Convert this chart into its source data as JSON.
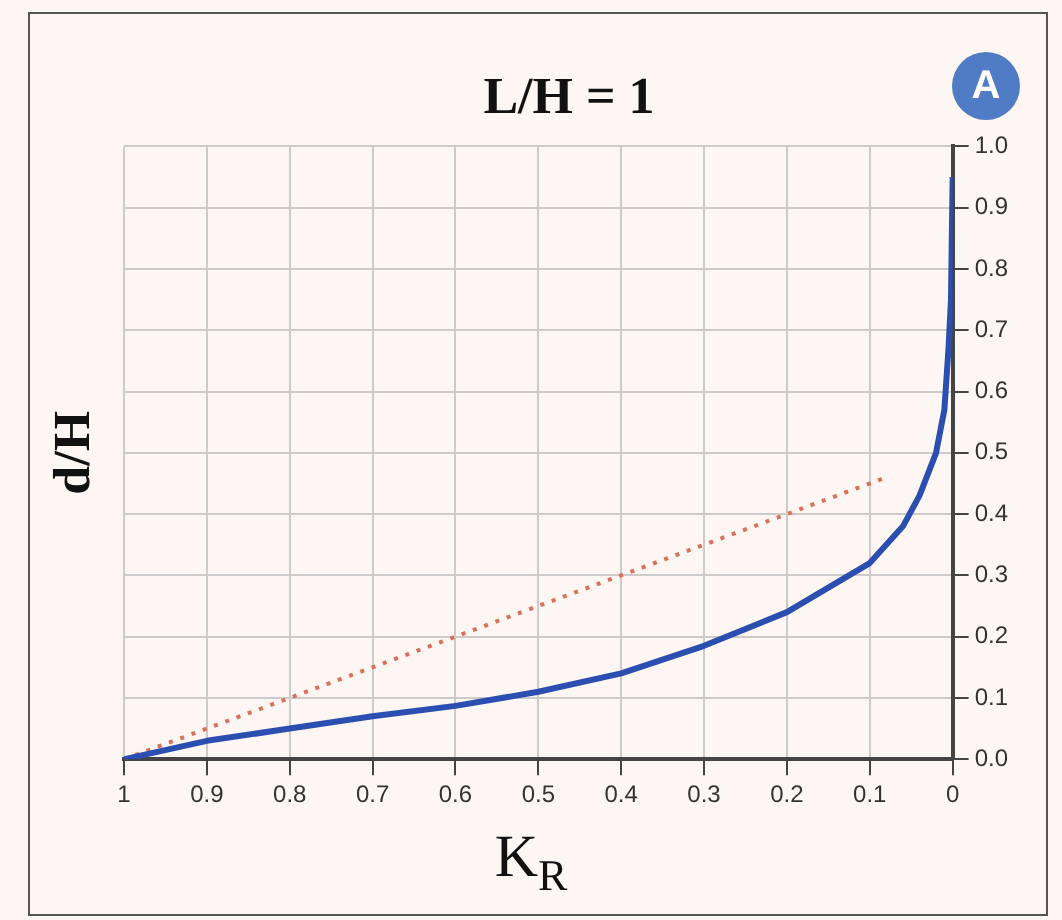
{
  "chart_data": {
    "type": "line",
    "title": "L/H = 1",
    "xlabel": "K$_{R}$",
    "ylabel": "d/H",
    "annotations": [
      "A"
    ],
    "xlim": [
      1,
      0
    ],
    "xticks": [
      1,
      {
        "value": 0.9,
        "label": "0.9"
      },
      {
        "value": 0.8,
        "label": "0.8"
      },
      {
        "value": 0.7,
        "label": "0.7"
      },
      {
        "value": 0.6,
        "label": "0.6"
      },
      {
        "value": 0.5,
        "label": "0.5"
      },
      {
        "value": 0.4,
        "label": "0.4"
      },
      {
        "value": 0.3,
        "label": "0.3"
      },
      {
        "value": 0.2,
        "label": "0.2"
      },
      {
        "value": 0.1,
        "label": "0.1"
      },
      0
    ],
    "ylim": [
      0,
      1
    ],
    "yticks": [
      {
        "value": 0,
        "label": "0.0"
      },
      0.1,
      0.2,
      0.3,
      0.4,
      0.5,
      0.6,
      0.7,
      0.8,
      0.9,
      {
        "value": 1,
        "label": "1.0"
      }
    ],
    "grid": true,
    "marker": "none",
    "series": [
      {
        "color": "#2a4fb0",
        "line_style": "solid",
        "x": [
          1,
          0.9,
          0.8,
          0.7,
          0.6,
          0.5,
          0.4,
          0.3,
          0.2,
          0.1,
          0.06,
          0.04,
          0.02,
          0.01,
          0.005,
          0.002,
          0
        ],
        "values": [
          0,
          0.03,
          0.05,
          0.07,
          0.087,
          0.11,
          0.14,
          0.185,
          0.24,
          0.32,
          0.38,
          0.43,
          0.5,
          0.57,
          0.67,
          0.75,
          0.95
        ]
      },
      {
        "color": "#d9705a",
        "line_style": "dotted",
        "x": [
          1,
          0.08
        ],
        "values": [
          0,
          0.46
        ]
      }
    ]
  }
}
